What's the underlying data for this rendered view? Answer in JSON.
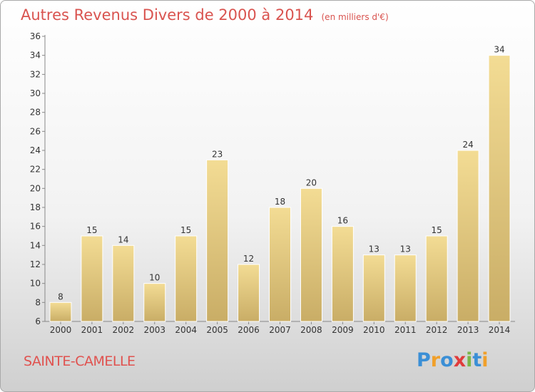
{
  "chart_data": {
    "type": "bar",
    "title": "Autres Revenus Divers de 2000 à 2014",
    "subtitle": "(en milliers d'€)",
    "categories": [
      "2000",
      "2001",
      "2002",
      "2003",
      "2004",
      "2005",
      "2006",
      "2007",
      "2008",
      "2009",
      "2010",
      "2011",
      "2012",
      "2013",
      "2014"
    ],
    "values": [
      8,
      15,
      14,
      10,
      15,
      23,
      12,
      18,
      20,
      16,
      13,
      13,
      15,
      24,
      34
    ],
    "ylim": [
      6,
      36
    ],
    "yticks": [
      6,
      8,
      10,
      12,
      14,
      16,
      18,
      20,
      22,
      24,
      26,
      28,
      30,
      32,
      34,
      36
    ],
    "grid": false,
    "colors": {
      "bar_light": "#f3dc94",
      "bar_dark": "#c9ad66",
      "title": "#d9534f"
    }
  },
  "location": "SAINTE-CAMELLE",
  "brand": {
    "letters": [
      "P",
      "r",
      "o",
      "x",
      "i",
      "t",
      "i"
    ],
    "colors": [
      "#3b8fd6",
      "#f0a02a",
      "#3b8fd6",
      "#e03c3c",
      "#7ab648",
      "#3b8fd6",
      "#f0a02a"
    ]
  }
}
